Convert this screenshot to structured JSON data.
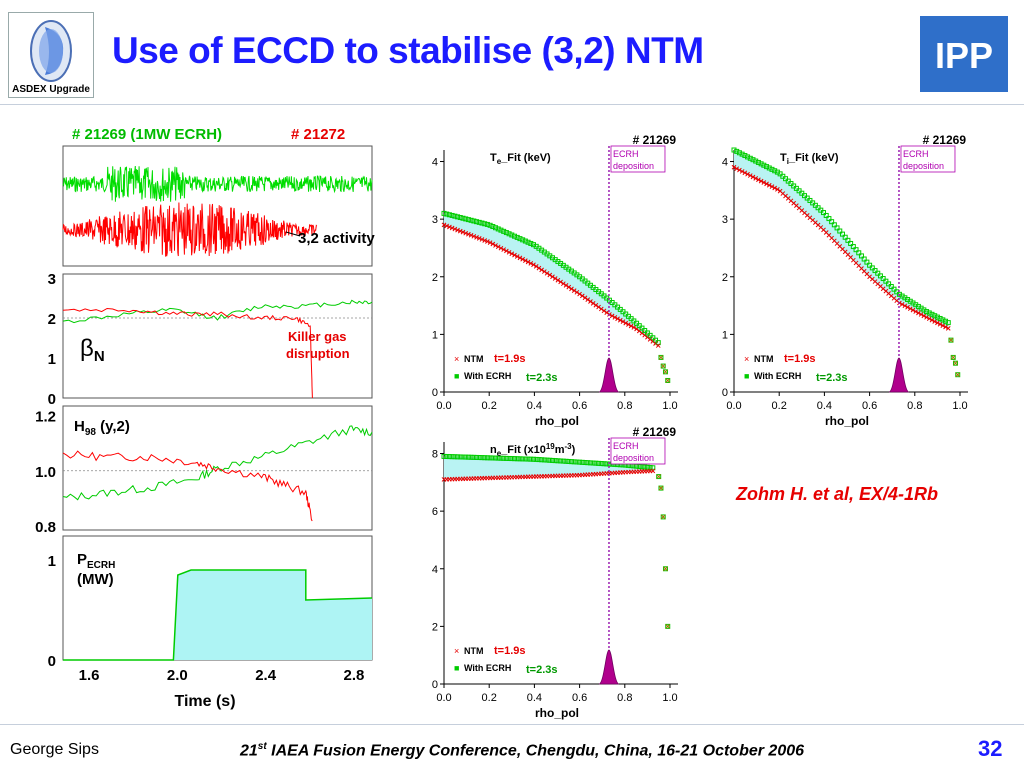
{
  "slide": {
    "title": "Use of ECCD to stabilise (3,2) NTM",
    "logo_left_text": "ASDEX Upgrade",
    "logo_right_text": "IPP",
    "citation": "Zohm H. et al, EX/4-1Rb",
    "footer": {
      "author": "George Sips",
      "conference_ordinal": "21",
      "conference_ordinal_suffix": "st",
      "conference_rest": " IAEA Fusion Energy Conference, Chengdu, China, 16-21 October 2006",
      "page_number": "32"
    },
    "colors": {
      "title": "#1c1cff",
      "green": "#00cc00",
      "red": "#e60000",
      "magenta": "#b000b0",
      "cyan_fill": "#aef4f4"
    }
  },
  "chart_data": [
    {
      "type": "line",
      "panel": "MHD activity",
      "title_green": "# 21269 (1MW ECRH)",
      "title_red": "# 21272",
      "annotation": "3,2 activity",
      "series": [
        {
          "name": "# 21269 (1MW ECRH)",
          "color": "#00dd00",
          "x_range": [
            1.5,
            2.9
          ]
        },
        {
          "name": "# 21272",
          "color": "#ff0000",
          "x_range": [
            1.5,
            2.65
          ]
        }
      ]
    },
    {
      "type": "line",
      "panel": "beta_N",
      "label_main": "β",
      "label_sub": "N",
      "annotation_line1": "Killer gas",
      "annotation_line2": "disruption",
      "y_ticks": [
        "3",
        "2",
        "1",
        "0"
      ],
      "ylim": [
        0,
        3
      ],
      "reference_y": 2,
      "series": [
        {
          "name": "# 21269",
          "color": "#00cc00",
          "x": [
            1.5,
            1.8,
            2.0,
            2.2,
            2.4,
            2.6,
            2.8,
            2.9
          ],
          "y": [
            1.9,
            2.1,
            2.2,
            2.0,
            2.3,
            2.3,
            2.4,
            2.4
          ]
        },
        {
          "name": "# 21272",
          "color": "#ff0000",
          "x": [
            1.5,
            1.8,
            2.0,
            2.2,
            2.4,
            2.55,
            2.62,
            2.63
          ],
          "y": [
            2.2,
            2.2,
            2.1,
            2.1,
            2.0,
            2.0,
            1.8,
            0.0
          ]
        }
      ]
    },
    {
      "type": "line",
      "panel": "H98",
      "label_main": "H",
      "label_sub": "98",
      "label_suffix": " (y,2)",
      "y_ticks": [
        "1.2",
        "1.0",
        "0.8"
      ],
      "ylim": [
        0.8,
        1.22
      ],
      "reference_y": 1.0,
      "series": [
        {
          "name": "# 21269",
          "color": "#00cc00",
          "x": [
            1.5,
            1.7,
            1.9,
            2.1,
            2.2,
            2.4,
            2.6,
            2.8,
            2.9
          ],
          "y": [
            0.9,
            0.92,
            0.94,
            0.97,
            1.01,
            1.05,
            1.1,
            1.15,
            1.14
          ]
        },
        {
          "name": "# 21272",
          "color": "#ff0000",
          "x": [
            1.5,
            1.7,
            1.9,
            2.1,
            2.2,
            2.4,
            2.5,
            2.6,
            2.63
          ],
          "y": [
            1.06,
            1.05,
            1.05,
            1.03,
            1.01,
            0.98,
            0.95,
            0.92,
            0.82
          ]
        }
      ]
    },
    {
      "type": "area",
      "panel": "P_ECRH",
      "label_main": "P",
      "label_sub": "ECRH",
      "label_unit": "(MW)",
      "xlabel": "Time (s)",
      "x_ticks": [
        "1.6",
        "2.0",
        "2.4",
        "2.8"
      ],
      "x_tick_values": [
        1.6,
        2.0,
        2.4,
        2.8
      ],
      "xlim": [
        1.5,
        2.9
      ],
      "y_ticks": [
        "1",
        "0"
      ],
      "ylim": [
        0,
        1.2
      ],
      "series": [
        {
          "name": "P_ECRH",
          "color": "#00cc00",
          "fill": "#aef4f4",
          "x": [
            1.5,
            2.0,
            2.02,
            2.08,
            2.6,
            2.6,
            2.9
          ],
          "y": [
            0,
            0,
            0.85,
            0.9,
            0.9,
            0.6,
            0.62
          ]
        }
      ]
    },
    {
      "type": "scatter",
      "panel": "Te_Fit",
      "shot": "# 21269",
      "label_main": "T",
      "label_sub": "e",
      "label_rest": "_Fit (keV)",
      "deposition_label_1": "ECRH",
      "deposition_label_2": "deposition",
      "deposition_rho": 0.73,
      "xlabel": "rho_pol",
      "x_ticks": [
        "0.0",
        "0.2",
        "0.4",
        "0.6",
        "0.8",
        "1.0"
      ],
      "xlim": [
        0,
        1.0
      ],
      "y_ticks": [
        "4",
        "3",
        "2",
        "1",
        "0"
      ],
      "ylim": [
        0,
        4.2
      ],
      "legend": [
        {
          "marker": "×",
          "label": "NTM",
          "time": "t=1.9s",
          "color": "#e60000",
          "time_color": "#e60000"
        },
        {
          "marker": "■",
          "label": "With ECRH",
          "time": "t=2.3s",
          "color": "#00cc00",
          "time_color": "#009900"
        }
      ],
      "series": [
        {
          "name": "NTM",
          "color": "#e60000",
          "x": [
            0.0,
            0.2,
            0.4,
            0.6,
            0.73,
            0.85,
            0.95
          ],
          "y": [
            2.9,
            2.6,
            2.2,
            1.7,
            1.35,
            1.1,
            0.8
          ]
        },
        {
          "name": "With ECRH",
          "color": "#00cc00",
          "x": [
            0.0,
            0.2,
            0.4,
            0.6,
            0.73,
            0.85,
            0.95
          ],
          "y": [
            3.1,
            2.9,
            2.55,
            2.0,
            1.6,
            1.2,
            0.85
          ]
        }
      ],
      "edge_points": {
        "x": [
          0.96,
          0.97,
          0.98,
          0.99
        ],
        "y": [
          0.6,
          0.45,
          0.35,
          0.2
        ]
      }
    },
    {
      "type": "scatter",
      "panel": "Ti_Fit",
      "shot": "# 21269",
      "label_main": "T",
      "label_sub": "i",
      "label_rest": "_Fit (keV)",
      "deposition_label_1": "ECRH",
      "deposition_label_2": "deposition",
      "deposition_rho": 0.73,
      "xlabel": "rho_pol",
      "x_ticks": [
        "0.0",
        "0.2",
        "0.4",
        "0.6",
        "0.8",
        "1.0"
      ],
      "xlim": [
        0,
        1.0
      ],
      "y_ticks": [
        "4",
        "3",
        "2",
        "1",
        "0"
      ],
      "ylim": [
        0,
        4.2
      ],
      "legend": [
        {
          "marker": "×",
          "label": "NTM",
          "time": "t=1.9s",
          "color": "#e60000",
          "time_color": "#e60000"
        },
        {
          "marker": "■",
          "label": "With ECRH",
          "time": "t=2.3s",
          "color": "#00cc00",
          "time_color": "#009900"
        }
      ],
      "series": [
        {
          "name": "NTM",
          "color": "#e60000",
          "x": [
            0.0,
            0.2,
            0.4,
            0.6,
            0.73,
            0.85,
            0.95
          ],
          "y": [
            3.9,
            3.5,
            2.8,
            2.0,
            1.55,
            1.3,
            1.1
          ]
        },
        {
          "name": "With ECRH",
          "color": "#00cc00",
          "x": [
            0.0,
            0.2,
            0.4,
            0.6,
            0.73,
            0.85,
            0.95
          ],
          "y": [
            4.2,
            3.8,
            3.1,
            2.2,
            1.7,
            1.4,
            1.2
          ]
        }
      ],
      "edge_points": {
        "x": [
          0.96,
          0.97,
          0.98,
          0.99
        ],
        "y": [
          0.9,
          0.6,
          0.5,
          0.3
        ]
      }
    },
    {
      "type": "scatter",
      "panel": "ne_Fit",
      "shot": "# 21269",
      "label_main": "n",
      "label_sub": "e",
      "label_rest": "_Fit (x10",
      "label_sup": "19",
      "label_rest2": "m",
      "label_sup2": "-3",
      "label_close": ")",
      "deposition_label_1": "ECRH",
      "deposition_label_2": "deposition",
      "deposition_rho": 0.73,
      "xlabel": "rho_pol",
      "x_ticks": [
        "0.0",
        "0.2",
        "0.4",
        "0.6",
        "0.8",
        "1.0"
      ],
      "xlim": [
        0,
        1.0
      ],
      "y_ticks": [
        "8",
        "6",
        "4",
        "2",
        "0"
      ],
      "ylim": [
        0,
        8.4
      ],
      "legend": [
        {
          "marker": "×",
          "label": "NTM",
          "time": "t=1.9s",
          "color": "#e60000",
          "time_color": "#e60000"
        },
        {
          "marker": "■",
          "label": "With ECRH",
          "time": "t=2.3s",
          "color": "#00cc00",
          "time_color": "#009900"
        }
      ],
      "series": [
        {
          "name": "NTM",
          "color": "#e60000",
          "x": [
            0.0,
            0.2,
            0.4,
            0.6,
            0.8,
            0.93
          ],
          "y": [
            7.1,
            7.15,
            7.2,
            7.25,
            7.35,
            7.4
          ]
        },
        {
          "name": "With ECRH",
          "color": "#00cc00",
          "x": [
            0.0,
            0.2,
            0.4,
            0.6,
            0.8,
            0.93
          ],
          "y": [
            7.9,
            7.85,
            7.8,
            7.7,
            7.6,
            7.5
          ]
        }
      ],
      "edge_points": {
        "x": [
          0.95,
          0.96,
          0.97,
          0.98,
          0.99
        ],
        "y": [
          7.2,
          6.8,
          5.8,
          4.0,
          2.0
        ]
      }
    }
  ]
}
